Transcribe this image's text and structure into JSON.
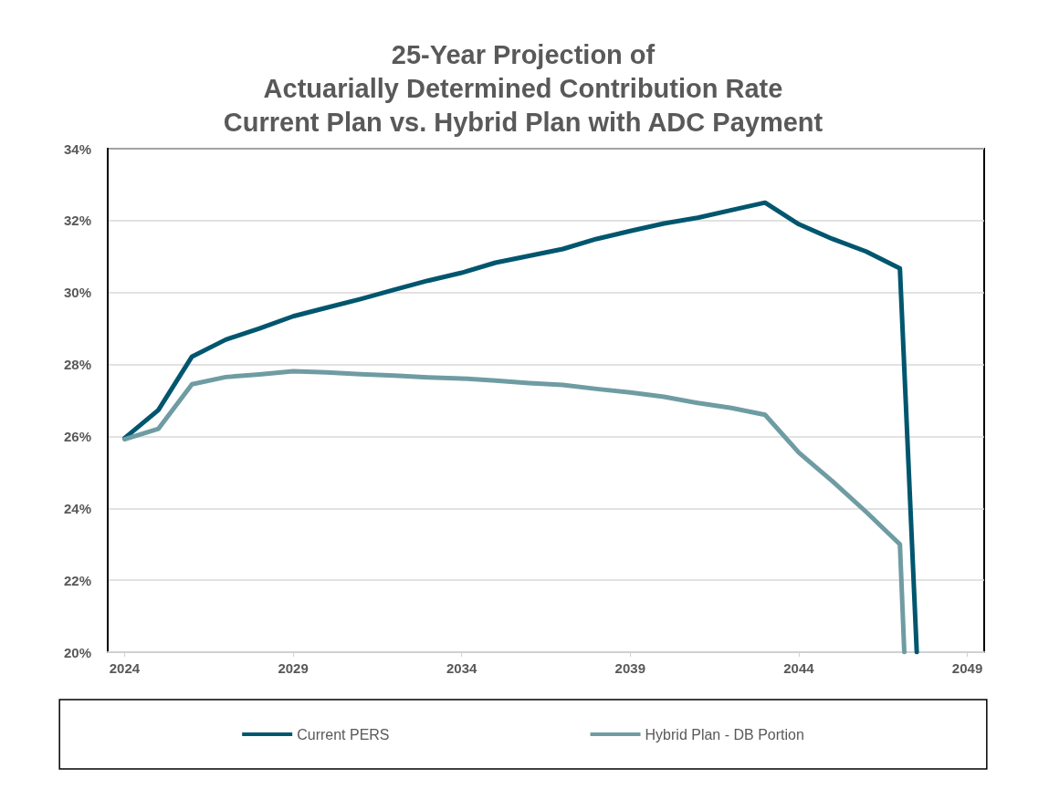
{
  "chart_data": {
    "type": "line",
    "title": "25-Year Projection of\nActuarially Determined Contribution Rate\nCurrent Plan vs. Hybrid Plan with ADC Payment",
    "xlim": [
      2023.5,
      2049.5
    ],
    "xticks": [
      2024,
      2029,
      2034,
      2039,
      2044,
      2049
    ],
    "ylim": [
      20,
      34
    ],
    "yticks": [
      {
        "value": 20,
        "label": "20%"
      },
      {
        "value": 22,
        "label": "22%"
      },
      {
        "value": 24,
        "label": "24%"
      },
      {
        "value": 26,
        "label": "26%"
      },
      {
        "value": 28,
        "label": "28%"
      },
      {
        "value": 30,
        "label": "30%"
      },
      {
        "value": 32,
        "label": "32%"
      },
      {
        "value": 34,
        "label": "34%"
      }
    ],
    "grid": "y",
    "legend": "bottom",
    "marker": "none",
    "line_style": "solid",
    "series": [
      {
        "name": "Current PERS",
        "color": "#00566e",
        "x": [
          2024,
          2025,
          2026,
          2027,
          2028,
          2029,
          2030,
          2031,
          2032,
          2033,
          2034,
          2035,
          2036,
          2037,
          2038,
          2039,
          2040,
          2041,
          2042,
          2043,
          2044,
          2045,
          2046,
          2047,
          2047.5
        ],
        "values": [
          25.95,
          26.73,
          28.22,
          28.69,
          29.0,
          29.34,
          29.58,
          29.82,
          30.08,
          30.33,
          30.55,
          30.83,
          31.02,
          31.21,
          31.49,
          31.71,
          31.92,
          32.08,
          32.29,
          32.5,
          31.9,
          31.49,
          31.14,
          30.67,
          20
        ]
      },
      {
        "name": "Hybrid Plan - DB Portion",
        "color": "#6f9ca3",
        "x": [
          2024,
          2025,
          2026,
          2027,
          2028,
          2029,
          2030,
          2031,
          2032,
          2033,
          2034,
          2035,
          2036,
          2037,
          2038,
          2039,
          2040,
          2041,
          2042,
          2043,
          2044,
          2045,
          2046,
          2047,
          2047.13
        ],
        "values": [
          25.92,
          26.21,
          27.45,
          27.65,
          27.72,
          27.81,
          27.78,
          27.73,
          27.69,
          27.64,
          27.61,
          27.55,
          27.48,
          27.43,
          27.32,
          27.22,
          27.1,
          26.93,
          26.79,
          26.6,
          25.55,
          24.75,
          23.9,
          23.0,
          20
        ]
      }
    ]
  }
}
